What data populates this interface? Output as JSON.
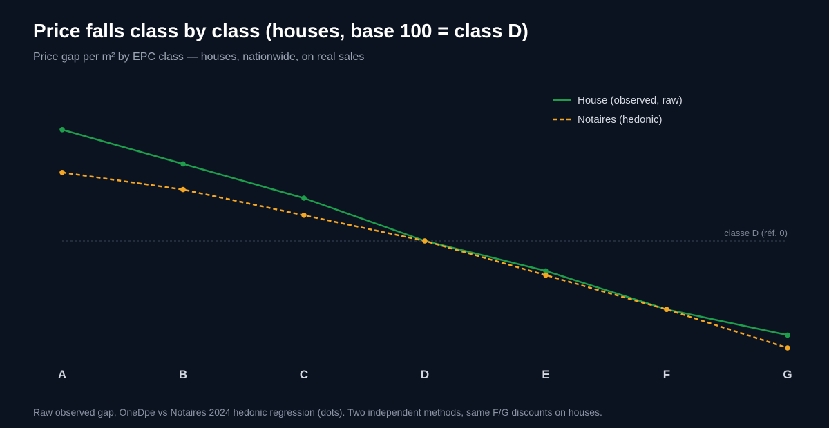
{
  "colors": {
    "background": "#0b1220",
    "house": "#1e9e4a",
    "notaires": "#f5a623",
    "reference_line": "#3a4556"
  },
  "chart_data": {
    "type": "line",
    "title": "Price falls class by class (houses, base 100 = class D)",
    "subtitle": "Price gap per m² by EPC class — houses, nationwide, on real sales",
    "footnote": "Raw observed gap, OneDpe vs Notaires 2024 hedonic regression (dots). Two independent methods, same F/G discounts on houses.",
    "categories": [
      "A",
      "B",
      "C",
      "D",
      "E",
      "F",
      "G"
    ],
    "series": [
      {
        "name": "House (observed, raw)",
        "style": "solid",
        "values": [
          26,
          18,
          10,
          0,
          -7,
          -16,
          -22
        ]
      },
      {
        "name": "Notaires (hedonic)",
        "style": "dashed",
        "values": [
          16,
          12,
          6,
          0,
          -8,
          -16,
          -25
        ]
      }
    ],
    "reference": {
      "label": "classe D (réf. 0)",
      "value": 0
    },
    "ylim": [
      -30,
      30
    ],
    "legend_position": "top-right",
    "grid": false,
    "xlabel": "",
    "ylabel": ""
  }
}
